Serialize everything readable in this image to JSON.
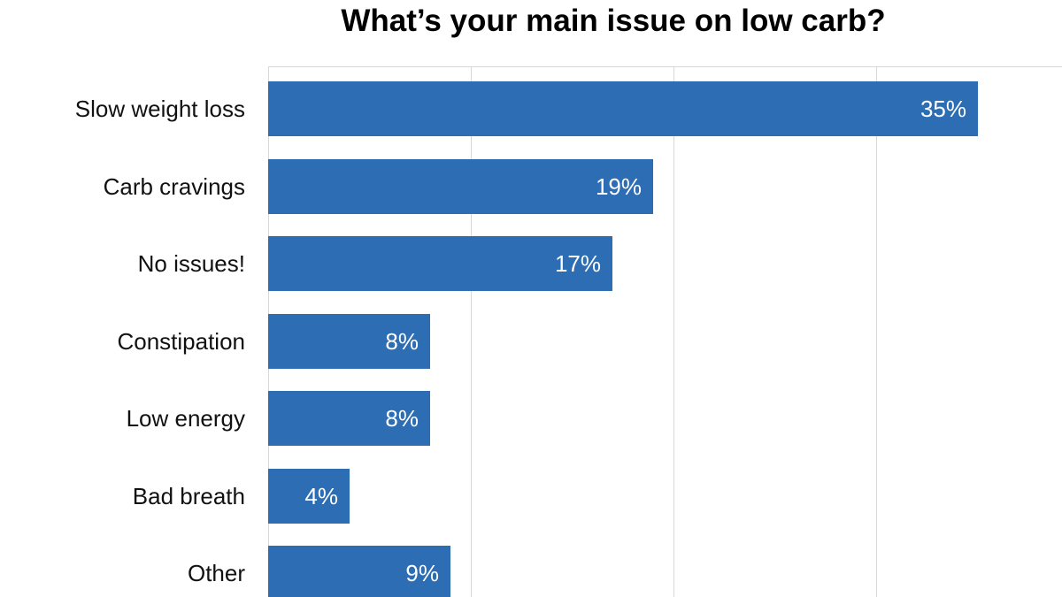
{
  "colors": {
    "background": "#ffffff",
    "bar": "#2d6db3",
    "grid": "#d8d8d8",
    "category_label": "#111111",
    "value_label": "#ffffff",
    "title": "#000000"
  },
  "chart_data": {
    "type": "bar",
    "orientation": "horizontal",
    "title": "What’s your main issue on low carb?",
    "categories": [
      "Slow weight loss",
      "Carb cravings",
      "No issues!",
      "Constipation",
      "Low energy",
      "Bad breath",
      "Other"
    ],
    "values": [
      35,
      19,
      17,
      8,
      8,
      4,
      9
    ],
    "value_labels": [
      "35%",
      "19%",
      "17%",
      "8%",
      "8%",
      "4%",
      "9%"
    ],
    "unit": "percent",
    "xlim": [
      0,
      40
    ],
    "gridline_ticks": [
      0,
      10,
      20,
      30,
      40
    ],
    "grid": true,
    "legend": false,
    "axis_tick_labels_visible": false,
    "bottom_bar_clipped": true
  }
}
